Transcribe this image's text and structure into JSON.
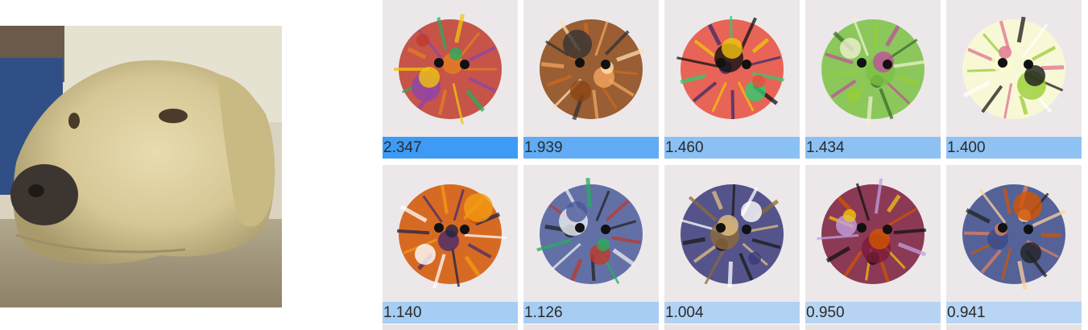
{
  "input_image": {
    "name": "yellow-labrador-photo"
  },
  "activations": {
    "cells": [
      {
        "value": "2.347",
        "strength": 1.0
      },
      {
        "value": "1.939",
        "strength": 0.826
      },
      {
        "value": "1.460",
        "strength": 0.622
      },
      {
        "value": "1.434",
        "strength": 0.611
      },
      {
        "value": "1.400",
        "strength": 0.597
      },
      {
        "value": "1.140",
        "strength": 0.486
      },
      {
        "value": "1.126",
        "strength": 0.48
      },
      {
        "value": "1.004",
        "strength": 0.428
      },
      {
        "value": "0.950",
        "strength": 0.405
      },
      {
        "value": "0.941",
        "strength": 0.401
      }
    ]
  },
  "colors": {
    "strong": "#3d9bf5",
    "weak": "#b8d5f3"
  }
}
